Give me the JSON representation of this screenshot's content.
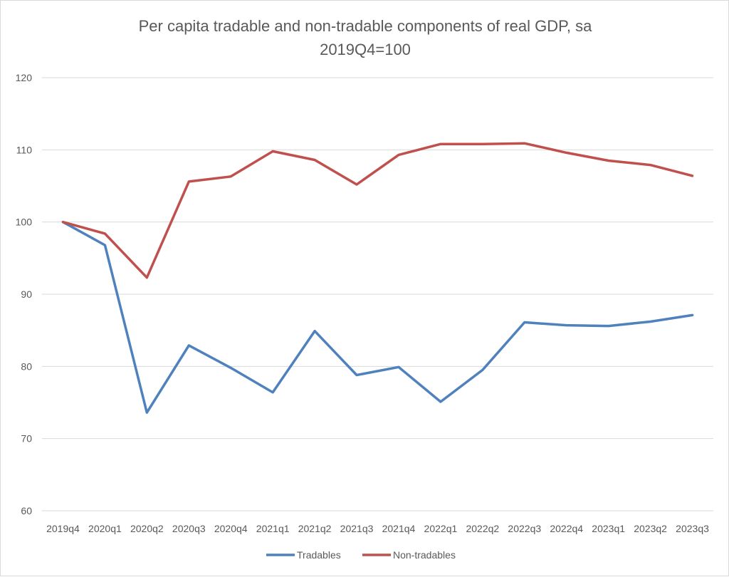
{
  "chart_data": {
    "type": "line",
    "title": "Per capita tradable and non-tradable components of real GDP, sa",
    "subtitle": "2019Q4=100",
    "xlabel": "",
    "ylabel": "",
    "ylim": [
      60,
      120
    ],
    "yticks": [
      60,
      70,
      80,
      90,
      100,
      110,
      120
    ],
    "grid": "horizontal",
    "legend_position": "bottom",
    "categories": [
      "2019q4",
      "2020q1",
      "2020q2",
      "2020q3",
      "2020q4",
      "2021q1",
      "2021q2",
      "2021q3",
      "2021q4",
      "2022q1",
      "2022q2",
      "2022q3",
      "2022q4",
      "2023q1",
      "2023q2",
      "2023q3"
    ],
    "series": [
      {
        "name": "Tradables",
        "color": "#4f81bd",
        "values": [
          100.0,
          96.8,
          73.6,
          82.9,
          79.8,
          76.4,
          84.9,
          78.8,
          79.9,
          75.1,
          79.5,
          86.1,
          85.7,
          85.6,
          86.2,
          87.1
        ]
      },
      {
        "name": "Non-tradables",
        "color": "#c0504d",
        "values": [
          100.0,
          98.4,
          92.3,
          105.6,
          106.3,
          109.8,
          108.6,
          105.2,
          109.3,
          110.8,
          110.8,
          110.9,
          109.6,
          108.5,
          107.9,
          106.4
        ]
      }
    ]
  }
}
